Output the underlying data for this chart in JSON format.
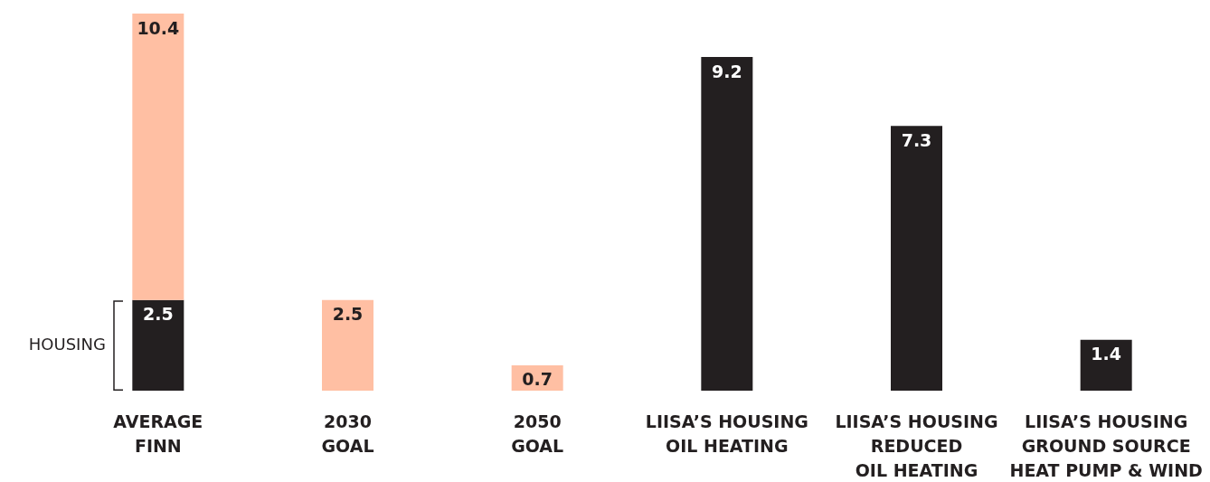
{
  "chart_data": {
    "type": "bar",
    "stacked": true,
    "categories": [
      "AVERAGE\nFINN",
      "2030\nGOAL",
      "2050\nGOAL",
      "LIISA’S HOUSING\nOIL HEATING",
      "LIISA’S HOUSING\nREDUCED\nOIL HEATING",
      "LIISA’S HOUSING\nGROUND SOURCE\nHEAT PUMP & WIND"
    ],
    "series": [
      {
        "color": "#231f20",
        "values": [
          2.5,
          null,
          null,
          9.2,
          7.3,
          1.4
        ],
        "value_labels": [
          "2.5",
          null,
          null,
          "9.2",
          "7.3",
          "1.4"
        ]
      },
      {
        "color": "#ffbfa3",
        "values": [
          7.9,
          2.5,
          0.7,
          null,
          null,
          null
        ],
        "value_labels": [
          null,
          "2.5",
          "0.7",
          null,
          null,
          null
        ]
      }
    ],
    "totals": [
      "10.4",
      null,
      null,
      null,
      null,
      null
    ],
    "annotations": [
      "HOUSING"
    ]
  }
}
